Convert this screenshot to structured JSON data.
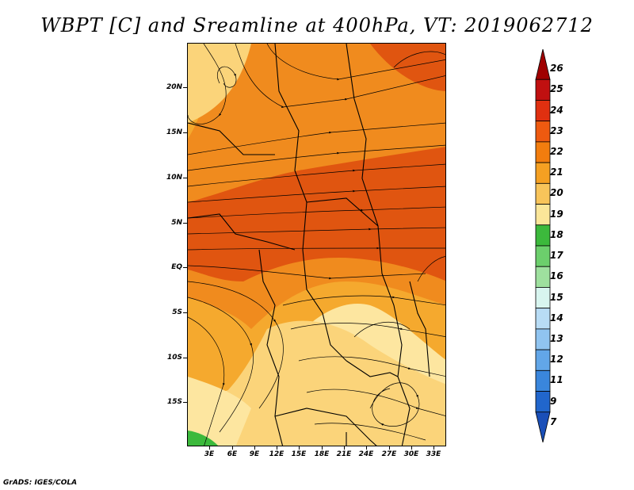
{
  "title": "WBPT [C] and Sreamline at 400hPa, VT: 2019062712",
  "credit": "GrADS: IGES/COLA",
  "lat_labels": [
    "20N",
    "15N",
    "10N",
    "5N",
    "EQ",
    "5S",
    "10S",
    "15S"
  ],
  "lon_labels": [
    "3E",
    "6E",
    "9E",
    "12E",
    "15E",
    "18E",
    "21E",
    "24E",
    "27E",
    "30E",
    "33E"
  ],
  "colorbar": {
    "labels": [
      "26",
      "25",
      "24",
      "23",
      "22",
      "21",
      "20",
      "19",
      "18",
      "17",
      "16",
      "15",
      "14",
      "13",
      "12",
      "11",
      "9",
      "7"
    ],
    "colors": [
      "#a00000",
      "#c01010",
      "#e03010",
      "#ee5a10",
      "#f27d0e",
      "#f5a022",
      "#f8c45a",
      "#fbe699",
      "#3cb93c",
      "#6ccf6c",
      "#9ee09e",
      "#d8f5ef",
      "#b8dcf5",
      "#90c4f0",
      "#62a6e8",
      "#3a86dc",
      "#2166cc",
      "#1a4fb8"
    ]
  },
  "map": {
    "colors": {
      "dark": "#e05510",
      "orange": "#f08b1e",
      "light_orange": "#f5a92e",
      "yellow": "#fbd47a",
      "pale": "#fde6a0",
      "green": "#3cb93c"
    }
  }
}
